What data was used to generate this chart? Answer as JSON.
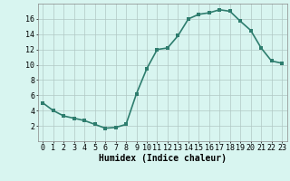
{
  "x": [
    0,
    1,
    2,
    3,
    4,
    5,
    6,
    7,
    8,
    9,
    10,
    11,
    12,
    13,
    14,
    15,
    16,
    17,
    18,
    19,
    20,
    21,
    22,
    23
  ],
  "y": [
    5,
    4,
    3.3,
    3,
    2.7,
    2.2,
    1.7,
    1.8,
    2.2,
    6.2,
    9.5,
    12.0,
    12.2,
    13.8,
    16.0,
    16.6,
    16.8,
    17.2,
    17.0,
    15.7,
    14.5,
    12.2,
    10.5,
    10.2
  ],
  "line_color": "#2e7d6e",
  "marker_color": "#2e7d6e",
  "bg_color": "#d8f5f0",
  "grid_color": "#b0c8c4",
  "xlabel": "Humidex (Indice chaleur)",
  "xlim_min": -0.5,
  "xlim_max": 23.5,
  "ylim_min": 0,
  "ylim_max": 18,
  "yticks": [
    2,
    4,
    6,
    8,
    10,
    12,
    14,
    16
  ],
  "xticks": [
    0,
    1,
    2,
    3,
    4,
    5,
    6,
    7,
    8,
    9,
    10,
    11,
    12,
    13,
    14,
    15,
    16,
    17,
    18,
    19,
    20,
    21,
    22,
    23
  ],
  "xlabel_fontsize": 7,
  "tick_fontsize": 6,
  "marker_size": 2.5,
  "line_width": 1.2
}
